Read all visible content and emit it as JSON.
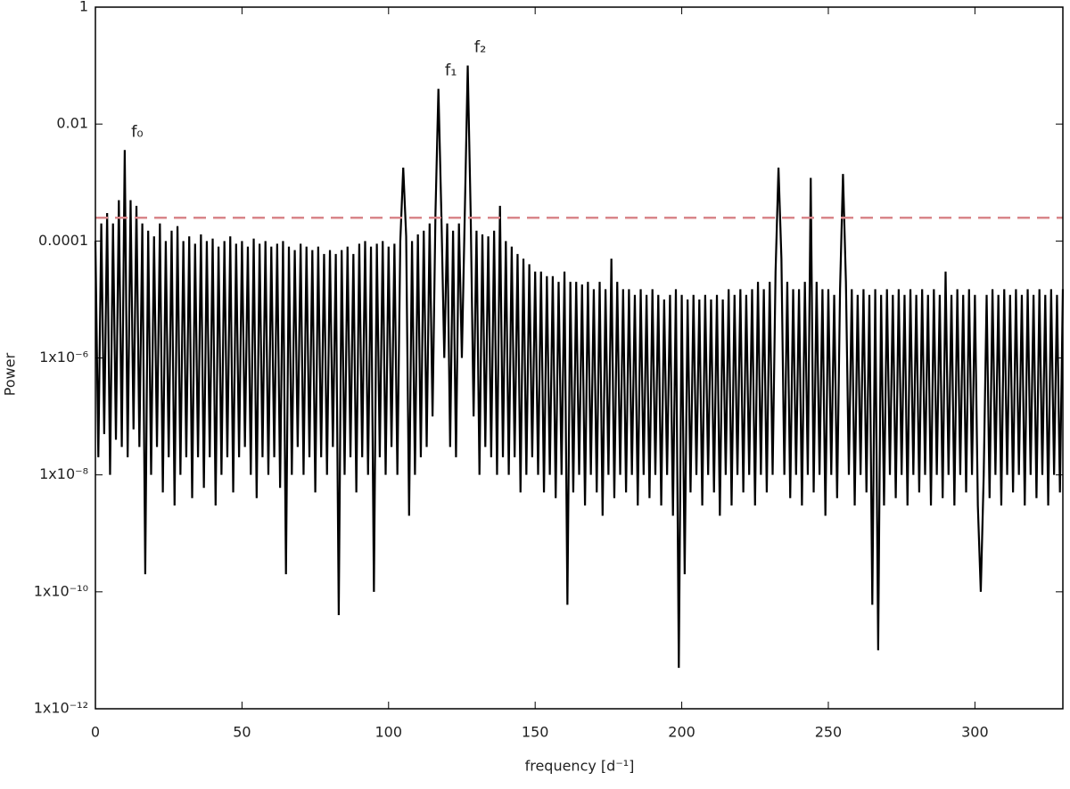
{
  "chart_data": {
    "type": "line",
    "y_label": "Power",
    "x_label": "frequency [d⁻¹]",
    "color": "#000000",
    "log_y": true,
    "xlim": [
      0,
      330
    ],
    "xticks": [
      0,
      50,
      100,
      150,
      200,
      250,
      300
    ],
    "ylim": [
      1e-12,
      1
    ],
    "yticks": [
      1,
      0.01,
      0.0001,
      {
        "value": 1e-06,
        "label": "1x10⁻⁶"
      },
      {
        "value": 1e-08,
        "label": "1x10⁻⁸"
      },
      {
        "value": 1e-10,
        "label": "1x10⁻¹⁰"
      },
      {
        "value": 1e-12,
        "label": "1x10⁻¹²"
      }
    ],
    "threshold": {
      "value": 0.00025,
      "color": "#d9868a"
    },
    "annotations": [
      {
        "text": "f₀",
        "x": 10
      },
      {
        "text": "f₁",
        "x": 117
      },
      {
        "text": "f₂",
        "x": 127
      }
    ],
    "x": [
      0,
      1,
      2,
      3,
      4,
      5,
      6,
      7,
      8,
      9,
      10,
      11,
      12,
      13,
      14,
      15,
      16,
      17,
      18,
      19,
      20,
      21,
      22,
      23,
      24,
      25,
      26,
      27,
      28,
      29,
      30,
      31,
      32,
      33,
      34,
      35,
      36,
      37,
      38,
      39,
      40,
      41,
      42,
      43,
      44,
      45,
      46,
      47,
      48,
      49,
      50,
      51,
      52,
      53,
      54,
      55,
      56,
      57,
      58,
      59,
      60,
      61,
      62,
      63,
      64,
      65,
      66,
      67,
      68,
      69,
      70,
      71,
      72,
      73,
      74,
      75,
      76,
      77,
      78,
      79,
      80,
      81,
      82,
      83,
      84,
      85,
      86,
      87,
      88,
      89,
      90,
      91,
      92,
      93,
      94,
      95,
      96,
      97,
      98,
      99,
      100,
      101,
      102,
      103,
      104,
      105,
      106,
      107,
      108,
      109,
      110,
      111,
      112,
      113,
      114,
      115,
      116,
      117,
      118,
      119,
      120,
      121,
      122,
      123,
      124,
      125,
      126,
      127,
      128,
      129,
      130,
      131,
      132,
      133,
      134,
      135,
      136,
      137,
      138,
      139,
      140,
      141,
      142,
      143,
      144,
      145,
      146,
      147,
      148,
      149,
      150,
      151,
      152,
      153,
      154,
      155,
      156,
      157,
      158,
      159,
      160,
      161,
      162,
      163,
      164,
      165,
      166,
      167,
      168,
      169,
      170,
      171,
      172,
      173,
      174,
      175,
      176,
      177,
      178,
      179,
      180,
      181,
      182,
      183,
      184,
      185,
      186,
      187,
      188,
      189,
      190,
      191,
      192,
      193,
      194,
      195,
      196,
      197,
      198,
      199,
      200,
      201,
      202,
      203,
      204,
      205,
      206,
      207,
      208,
      209,
      210,
      211,
      212,
      213,
      214,
      215,
      216,
      217,
      218,
      219,
      220,
      221,
      222,
      223,
      224,
      225,
      226,
      227,
      228,
      229,
      230,
      231,
      232,
      233,
      234,
      235,
      236,
      237,
      238,
      239,
      240,
      241,
      242,
      243,
      244,
      245,
      246,
      247,
      248,
      249,
      250,
      251,
      252,
      253,
      254,
      255,
      256,
      257,
      258,
      259,
      260,
      261,
      262,
      263,
      264,
      265,
      266,
      267,
      268,
      269,
      270,
      271,
      272,
      273,
      274,
      275,
      276,
      277,
      278,
      279,
      280,
      281,
      282,
      283,
      284,
      285,
      286,
      287,
      288,
      289,
      290,
      291,
      292,
      293,
      294,
      295,
      296,
      297,
      298,
      299,
      300,
      301,
      302,
      303,
      304,
      305,
      306,
      307,
      308,
      309,
      310,
      311,
      312,
      313,
      314,
      315,
      316,
      317,
      318,
      319,
      320,
      321,
      322,
      323,
      324,
      325,
      326,
      327,
      328,
      329,
      330
    ],
    "values": [
      0.0001,
      2e-08,
      0.0002,
      5e-08,
      0.0003,
      1e-08,
      0.0002,
      4e-08,
      0.0005,
      3e-08,
      0.0036,
      2e-08,
      0.0005,
      6e-08,
      0.0004,
      3e-08,
      0.0002,
      2e-10,
      0.00015,
      1e-08,
      0.00012,
      3e-08,
      0.0002,
      5e-09,
      0.0001,
      2e-08,
      0.00015,
      3e-09,
      0.00018,
      1e-08,
      0.0001,
      2e-08,
      0.00012,
      4e-09,
      9e-05,
      2e-08,
      0.00013,
      6e-09,
      0.0001,
      2e-08,
      0.00011,
      3e-09,
      8e-05,
      1e-08,
      0.0001,
      2e-08,
      0.00012,
      5e-09,
      9e-05,
      2e-08,
      0.0001,
      3e-08,
      8e-05,
      1e-08,
      0.00011,
      4e-09,
      9e-05,
      2e-08,
      0.0001,
      1e-08,
      8e-05,
      2e-08,
      9e-05,
      6e-09,
      0.0001,
      2e-10,
      8e-05,
      1e-08,
      7e-05,
      3e-08,
      9e-05,
      1e-08,
      8e-05,
      2e-08,
      7e-05,
      5e-09,
      8e-05,
      2e-08,
      6e-05,
      1e-08,
      7e-05,
      3e-08,
      6e-05,
      4e-11,
      7e-05,
      1e-08,
      8e-05,
      2e-08,
      6e-05,
      5e-09,
      9e-05,
      2e-08,
      0.0001,
      1e-08,
      8e-05,
      1e-10,
      9e-05,
      2e-08,
      0.0001,
      1e-08,
      8e-05,
      3e-08,
      9e-05,
      1e-08,
      0.0001,
      0.0018,
      0.00012,
      2e-09,
      0.0001,
      1e-08,
      0.00013,
      2e-08,
      0.00015,
      3e-08,
      0.0002,
      1e-07,
      0.0003,
      0.04,
      0.0003,
      1e-06,
      0.0002,
      3e-08,
      0.00015,
      2e-08,
      0.0002,
      1e-06,
      0.0003,
      0.1,
      0.0003,
      1e-07,
      0.00015,
      1e-08,
      0.00013,
      3e-08,
      0.00012,
      2e-08,
      0.00015,
      1e-08,
      0.0004,
      2e-08,
      0.0001,
      1e-08,
      8e-05,
      2e-08,
      6e-05,
      5e-09,
      5e-05,
      1e-08,
      4e-05,
      2e-08,
      3e-05,
      1e-08,
      3e-05,
      5e-09,
      2.5e-05,
      1e-08,
      2.5e-05,
      4e-09,
      2e-05,
      1e-08,
      3e-05,
      6e-11,
      2e-05,
      5e-09,
      2e-05,
      1e-08,
      1.8e-05,
      3e-09,
      2e-05,
      1e-08,
      1.5e-05,
      5e-09,
      2e-05,
      2e-09,
      1.5e-05,
      1e-08,
      5e-05,
      4e-09,
      2e-05,
      1e-08,
      1.5e-05,
      5e-09,
      1.5e-05,
      1e-08,
      1.2e-05,
      3e-09,
      1.5e-05,
      1e-08,
      1.2e-05,
      4e-09,
      1.5e-05,
      1e-08,
      1.2e-05,
      3e-09,
      1e-05,
      1e-08,
      1.2e-05,
      2e-09,
      1.5e-05,
      5e-12,
      1.2e-05,
      2e-10,
      1e-05,
      5e-09,
      1.2e-05,
      1e-08,
      1e-05,
      3e-09,
      1.2e-05,
      1e-08,
      1e-05,
      5e-09,
      1.2e-05,
      2e-09,
      1e-05,
      1e-08,
      1.5e-05,
      3e-09,
      1.2e-05,
      1e-08,
      1.5e-05,
      5e-09,
      1.2e-05,
      1e-08,
      1.5e-05,
      3e-09,
      2e-05,
      1e-08,
      1.5e-05,
      5e-09,
      2e-05,
      1e-08,
      3e-05,
      0.0018,
      5e-05,
      1e-08,
      2e-05,
      4e-09,
      1.5e-05,
      1e-08,
      1.5e-05,
      3e-09,
      2e-05,
      1e-08,
      0.0012,
      5e-09,
      2e-05,
      1e-08,
      1.5e-05,
      2e-09,
      1.5e-05,
      1e-08,
      1.2e-05,
      4e-09,
      1.5e-05,
      0.0014,
      2e-05,
      1e-08,
      1.5e-05,
      3e-09,
      1.2e-05,
      1e-08,
      1.5e-05,
      5e-09,
      1.2e-05,
      6e-11,
      1.5e-05,
      1e-11,
      1.2e-05,
      3e-09,
      1.5e-05,
      1e-08,
      1.2e-05,
      4e-09,
      1.5e-05,
      1e-08,
      1.2e-05,
      3e-09,
      1.5e-05,
      1e-08,
      1.2e-05,
      5e-09,
      1.5e-05,
      1e-08,
      1.2e-05,
      3e-09,
      1.5e-05,
      1e-08,
      1.2e-05,
      4e-09,
      3e-05,
      1e-08,
      1.2e-05,
      3e-09,
      1.5e-05,
      1e-08,
      1.2e-05,
      5e-09,
      1.5e-05,
      1e-08,
      1.2e-05,
      3e-09,
      1e-10,
      1e-08,
      1.2e-05,
      4e-09,
      1.5e-05,
      1e-08,
      1.2e-05,
      3e-09,
      1.5e-05,
      1e-08,
      1.2e-05,
      5e-09,
      1.5e-05,
      1e-08,
      1.2e-05,
      3e-09,
      1.5e-05,
      1e-08,
      1.2e-05,
      4e-09,
      1.5e-05,
      1e-08,
      1.2e-05,
      3e-09,
      1.5e-05,
      1e-08,
      1.2e-05,
      5e-09,
      1.5e-05
    ]
  }
}
